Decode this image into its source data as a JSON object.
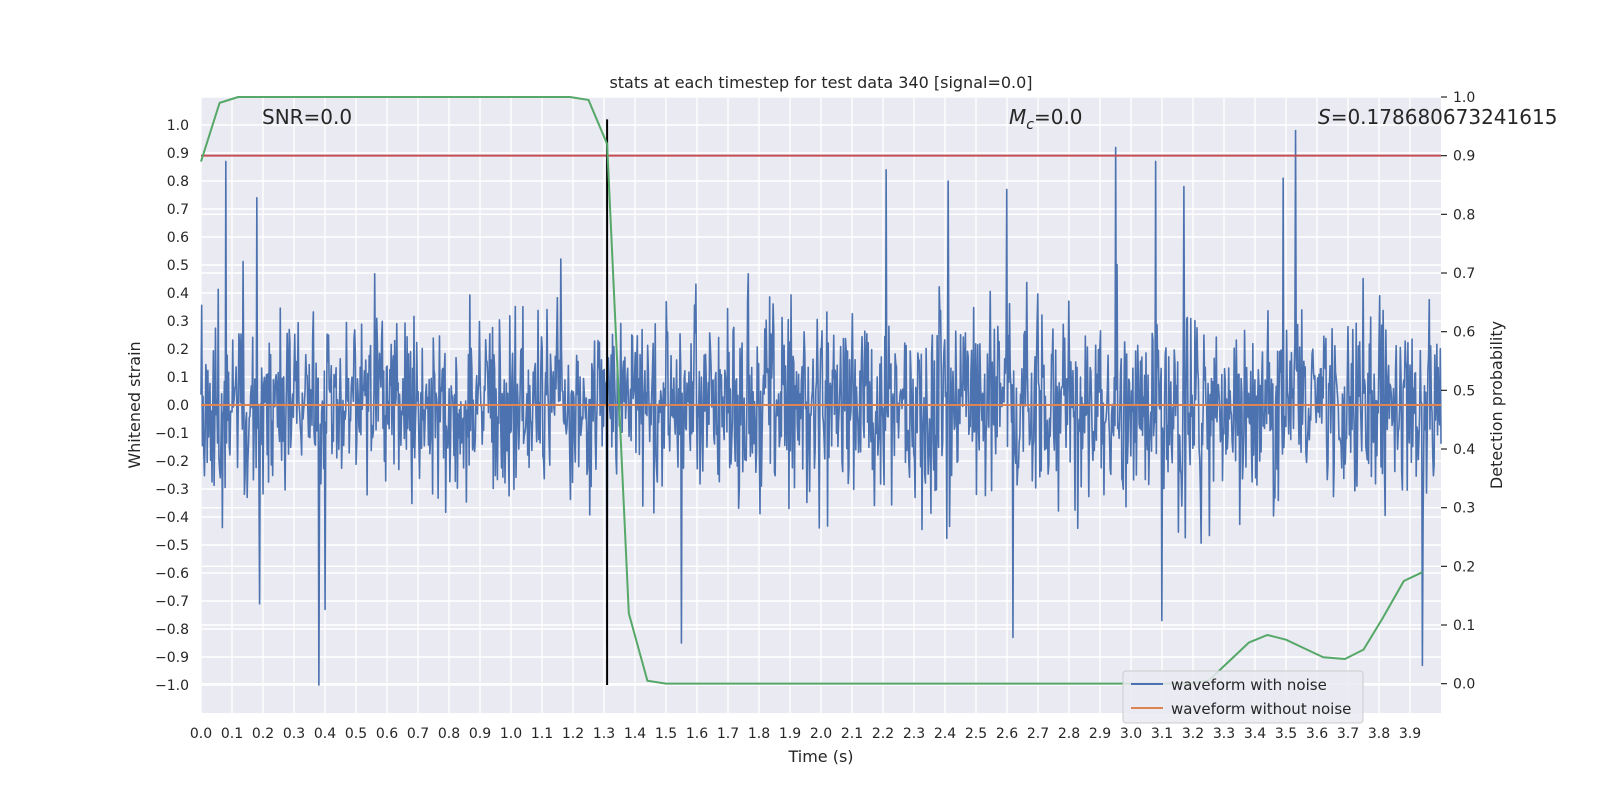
{
  "chart_data": {
    "type": "line",
    "title": "stats at each timestep for test data 340 [signal=0.0]",
    "xlabel": "Time (s)",
    "ylabel": "Whitened strain",
    "y2label": "Detection probability",
    "xlim": [
      0.0,
      4.0
    ],
    "ylim": [
      -1.1,
      1.1
    ],
    "y2lim": [
      -0.05,
      1.0
    ],
    "x_ticks": [
      0.0,
      0.1,
      0.2,
      0.3,
      0.4,
      0.5,
      0.6,
      0.7,
      0.8,
      0.9,
      1.0,
      1.1,
      1.2,
      1.3,
      1.4,
      1.5,
      1.6,
      1.7,
      1.8,
      1.9,
      2.0,
      2.1,
      2.2,
      2.3,
      2.4,
      2.5,
      2.6,
      2.7,
      2.8,
      2.9,
      3.0,
      3.1,
      3.2,
      3.3,
      3.4,
      3.5,
      3.6,
      3.7,
      3.8,
      3.9
    ],
    "x_tick_labels": [
      "0.0",
      "0.1",
      "0.2",
      "0.3",
      "0.4",
      "0.5",
      "0.6",
      "0.7",
      "0.8",
      "0.9",
      "1.0",
      "1.1",
      "1.2",
      "1.3",
      "1.4",
      "1.5",
      "1.6",
      "1.7",
      "1.8",
      "1.9",
      "2.0",
      "2.1",
      "2.2",
      "2.3",
      "2.4",
      "2.5",
      "2.6",
      "2.7",
      "2.8",
      "2.9",
      "3.0",
      "3.1",
      "3.2",
      "3.3",
      "3.4",
      "3.5",
      "3.6",
      "3.7",
      "3.8",
      "3.9"
    ],
    "y_ticks": [
      1.0,
      0.9,
      0.8,
      0.7,
      0.6,
      0.5,
      0.4,
      0.3,
      0.2,
      0.1,
      0.0,
      -0.1,
      -0.2,
      -0.3,
      -0.4,
      -0.5,
      -0.6,
      -0.7,
      -0.8,
      -0.9,
      -1.0
    ],
    "y_tick_labels": [
      "1.0",
      "0.9",
      "0.8",
      "0.7",
      "0.6",
      "0.5",
      "0.4",
      "0.3",
      "0.2",
      "0.1",
      "0.0",
      "−0.1",
      "−0.2",
      "−0.3",
      "−0.4",
      "−0.5",
      "−0.6",
      "−0.7",
      "−0.8",
      "−0.9",
      "−1.0"
    ],
    "y2_ticks": [
      1.0,
      0.9,
      0.8,
      0.7,
      0.6,
      0.5,
      0.4,
      0.3,
      0.2,
      0.1,
      0.0
    ],
    "y2_tick_labels": [
      "1.0",
      "0.9",
      "0.8",
      "0.7",
      "0.6",
      "0.5",
      "0.4",
      "0.3",
      "0.2",
      "0.1",
      "0.0"
    ],
    "grid": true,
    "legend_position": "bottom-right",
    "series": [
      {
        "name": "waveform with noise",
        "axis": "left",
        "color": "#4c72b0",
        "kind": "noise",
        "amplitude_range": [
          -1.0,
          0.98
        ],
        "samples": 1800,
        "peaks": [
          {
            "x": 0.08,
            "y": 0.87
          },
          {
            "x": 0.18,
            "y": 0.74
          },
          {
            "x": 0.38,
            "y": -1.0
          },
          {
            "x": 0.4,
            "y": -0.73
          },
          {
            "x": 0.19,
            "y": -0.71
          },
          {
            "x": 1.31,
            "y": -0.86
          },
          {
            "x": 1.55,
            "y": -0.85
          },
          {
            "x": 2.21,
            "y": 0.84
          },
          {
            "x": 2.41,
            "y": 0.8
          },
          {
            "x": 2.6,
            "y": 0.77
          },
          {
            "x": 2.62,
            "y": -0.83
          },
          {
            "x": 2.95,
            "y": 0.92
          },
          {
            "x": 3.08,
            "y": 0.87
          },
          {
            "x": 3.17,
            "y": 0.78
          },
          {
            "x": 3.53,
            "y": 0.98
          },
          {
            "x": 3.49,
            "y": 0.81
          },
          {
            "x": 3.94,
            "y": -0.93
          },
          {
            "x": 3.1,
            "y": -0.77
          }
        ]
      },
      {
        "name": "waveform without noise",
        "axis": "left",
        "color": "#dd8452",
        "x": [
          0.0,
          4.0
        ],
        "y": [
          0.0,
          0.0
        ]
      },
      {
        "name": "detection probability",
        "axis": "right",
        "color": "#55a868",
        "x": [
          0.0,
          0.06,
          0.12,
          0.19,
          0.25,
          0.31,
          0.38,
          0.44,
          0.5,
          0.56,
          0.62,
          0.69,
          0.75,
          0.81,
          0.88,
          0.94,
          1.0,
          1.06,
          1.12,
          1.19,
          1.25,
          1.31,
          1.38,
          1.44,
          1.5,
          1.56,
          1.62,
          1.69,
          1.75,
          1.81,
          1.88,
          1.94,
          2.0,
          2.06,
          2.12,
          2.19,
          2.25,
          2.31,
          2.38,
          2.44,
          2.5,
          2.56,
          2.62,
          2.69,
          2.75,
          2.81,
          2.88,
          2.94,
          3.0,
          3.06,
          3.12,
          3.19,
          3.25,
          3.31,
          3.38,
          3.44,
          3.5,
          3.56,
          3.62,
          3.69,
          3.75,
          3.81,
          3.88,
          3.94
        ],
        "y": [
          0.89,
          0.99,
          1.0,
          1.0,
          1.0,
          1.0,
          1.0,
          1.0,
          1.0,
          1.0,
          1.0,
          1.0,
          1.0,
          1.0,
          1.0,
          1.0,
          1.0,
          1.0,
          1.0,
          1.0,
          0.995,
          0.92,
          0.12,
          0.005,
          0.0,
          0.0,
          0.0,
          0.0,
          0.0,
          0.0,
          0.0,
          0.0,
          0.0,
          0.0,
          0.0,
          0.0,
          0.0,
          0.0,
          0.0,
          0.0,
          0.0,
          0.0,
          0.0,
          0.0,
          0.0,
          0.0,
          0.0,
          0.0,
          0.0,
          0.0,
          0.0,
          0.0,
          0.005,
          0.035,
          0.07,
          0.083,
          0.075,
          0.06,
          0.045,
          0.042,
          0.058,
          0.11,
          0.175,
          0.19
        ]
      }
    ],
    "hlines": [
      {
        "y2": 0.9,
        "color": "#c44e52"
      },
      {
        "y": 0.0,
        "color": "#dd8452"
      }
    ],
    "vlines": [
      {
        "x": 1.31,
        "color": "#000000"
      }
    ],
    "annotations": {
      "snr": "SNR=0.0",
      "mc_symbol": "M",
      "mc_sub": "c",
      "mc_value": "=0.0",
      "s_symbol": "S",
      "s_value": "=0.178680673241615"
    },
    "legend": [
      "waveform with noise",
      "waveform without noise"
    ]
  }
}
